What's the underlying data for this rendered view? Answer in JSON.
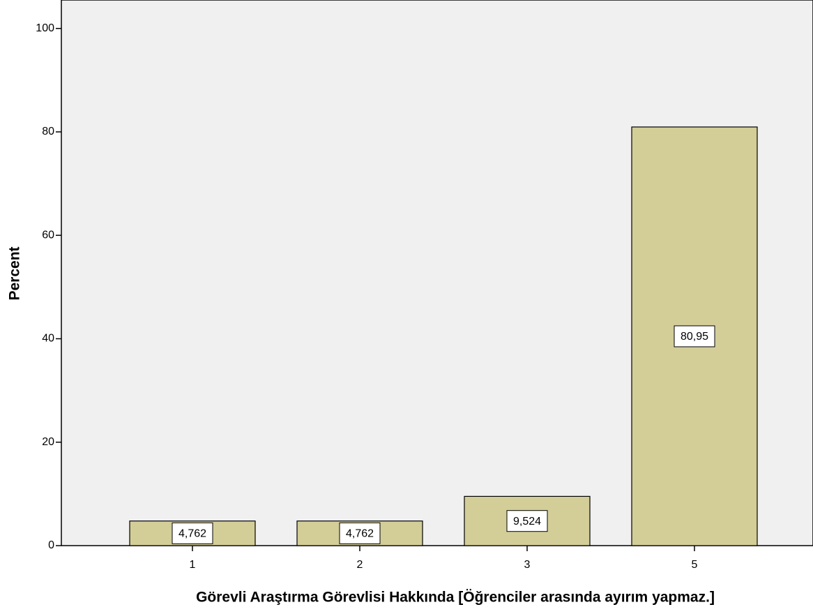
{
  "chart_data": {
    "type": "bar",
    "x_label": "Görevli Araştırma Görevlisi Hakkında [Öğrenciler arasında ayırım yapmaz.]",
    "y_label": "Percent",
    "categories": [
      "1",
      "2",
      "3",
      "5"
    ],
    "values": [
      4.762,
      4.762,
      9.524,
      80.95
    ],
    "value_labels": [
      "4,762",
      "4,762",
      "9,524",
      "80,95"
    ],
    "color": "#d3ce98",
    "ylim": [
      0,
      105.5
    ],
    "yticks": [
      0,
      20,
      40,
      60,
      80,
      100
    ]
  }
}
